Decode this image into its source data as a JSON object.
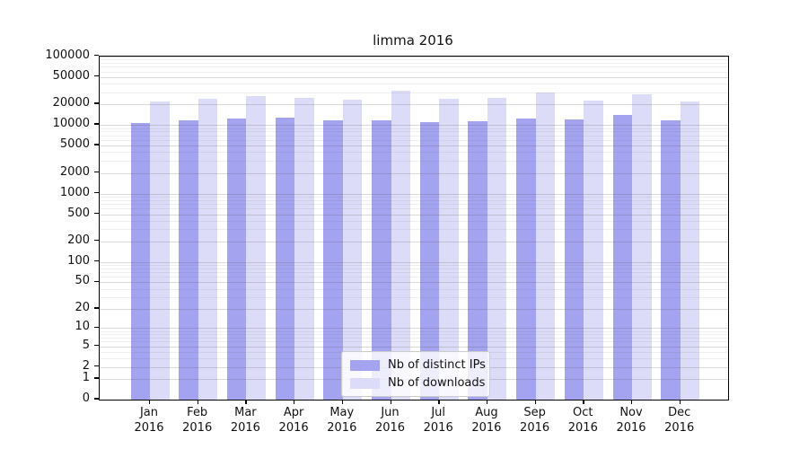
{
  "chart_data": {
    "type": "bar",
    "title": "limma 2016",
    "categories": [
      "Jan",
      "Feb",
      "Mar",
      "Apr",
      "May",
      "Jun",
      "Jul",
      "Aug",
      "Sep",
      "Oct",
      "Nov",
      "Dec"
    ],
    "category_year": "2016",
    "series": [
      {
        "name": "Nb of distinct IPs",
        "color": "#a3a3f0",
        "values": [
          10500,
          11600,
          12500,
          12900,
          11600,
          11800,
          11100,
          11400,
          12400,
          11900,
          13900,
          11700
        ]
      },
      {
        "name": "Nb of downloads",
        "color": "#dcdcf8",
        "values": [
          21600,
          24200,
          25900,
          24700,
          23400,
          31000,
          24200,
          24400,
          29300,
          22400,
          28100,
          21600
        ]
      }
    ],
    "yscale": "log1p",
    "ylim": [
      0,
      100000
    ],
    "yticks": [
      0,
      1,
      2,
      5,
      10,
      20,
      50,
      100,
      200,
      500,
      1000,
      2000,
      5000,
      10000,
      20000,
      50000,
      100000
    ],
    "grid": "both",
    "legend_position": "lower center"
  }
}
